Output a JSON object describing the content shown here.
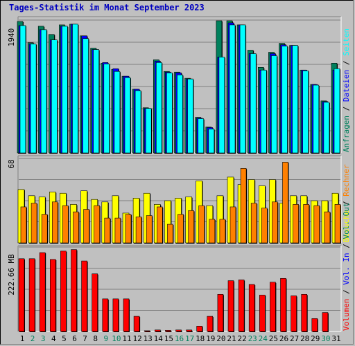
{
  "title": "Tages-Statistik im Monat September 2023",
  "colors": {
    "background": "#c0c0c0",
    "grid": "#808080",
    "hits": "#00805c",
    "files": "#0000ff",
    "pages": "#00ffff",
    "visits": "#ffff00",
    "sites": "#ff8000",
    "volume": "#ff0000",
    "title": "#0000c0",
    "weekend_day": "#00805c",
    "weekday": "#000000"
  },
  "chart_data": [
    {
      "type": "bar",
      "name": "requests-files-pages",
      "scale_label": "1940",
      "legend": [
        {
          "text": "Anfragen",
          "color": "#00805c"
        },
        {
          "text": "Dateien",
          "color": "#0000ff"
        },
        {
          "text": "Seiten",
          "color": "#00ffff"
        }
      ],
      "ylim": [
        0,
        1940
      ],
      "categories": [
        "1",
        "2",
        "3",
        "4",
        "5",
        "6",
        "7",
        "8",
        "9",
        "10",
        "11",
        "12",
        "13",
        "14",
        "15",
        "16",
        "17",
        "18",
        "19",
        "20",
        "21",
        "22",
        "23",
        "24",
        "25",
        "26",
        "27",
        "28",
        "29",
        "30",
        "31"
      ],
      "series": [
        {
          "name": "Anfragen",
          "values": [
            1920,
            1610,
            1850,
            1730,
            1870,
            1880,
            1710,
            1530,
            1310,
            1220,
            1120,
            930,
            660,
            1360,
            1190,
            1180,
            1090,
            520,
            380,
            1930,
            1930,
            1870,
            1500,
            1250,
            1470,
            1600,
            1570,
            1210,
            1000,
            760,
            1310
          ]
        },
        {
          "name": "Dateien",
          "values": [
            1860,
            1590,
            1800,
            1650,
            1850,
            1880,
            1710,
            1510,
            1320,
            1230,
            1120,
            930,
            650,
            1340,
            1180,
            1170,
            1080,
            510,
            370,
            1400,
            1900,
            1870,
            1450,
            1210,
            1450,
            1580,
            1570,
            1210,
            1000,
            750,
            1210
          ]
        },
        {
          "name": "Seiten",
          "values": [
            1860,
            1590,
            1800,
            1650,
            1850,
            1880,
            1670,
            1510,
            1300,
            1190,
            1100,
            910,
            650,
            1320,
            1170,
            1140,
            1080,
            500,
            350,
            1400,
            1870,
            1870,
            1450,
            1210,
            1420,
            1560,
            1570,
            1200,
            990,
            740,
            1230
          ]
        }
      ]
    },
    {
      "type": "bar",
      "name": "visits-sites",
      "scale_label": "68",
      "legend": [
        {
          "text": "Besuche",
          "color": "#ffff00"
        },
        {
          "text": "Rechner",
          "color": "#ff8000"
        }
      ],
      "ylim": [
        0,
        68
      ],
      "categories": [
        "1",
        "2",
        "3",
        "4",
        "5",
        "6",
        "7",
        "8",
        "9",
        "10",
        "11",
        "12",
        "13",
        "14",
        "15",
        "16",
        "17",
        "18",
        "19",
        "20",
        "21",
        "22",
        "23",
        "24",
        "25",
        "26",
        "27",
        "28",
        "29",
        "30",
        "31"
      ],
      "series": [
        {
          "name": "Besuche",
          "values": [
            43,
            38,
            37,
            41,
            40,
            31,
            42,
            35,
            33,
            38,
            24,
            36,
            40,
            31,
            34,
            36,
            37,
            50,
            30,
            38,
            53,
            47,
            51,
            46,
            51,
            32,
            38,
            38,
            34,
            34,
            40
          ]
        },
        {
          "name": "Rechner",
          "values": [
            29,
            32,
            23,
            33,
            30,
            25,
            27,
            30,
            20,
            20,
            23,
            21,
            22,
            29,
            15,
            23,
            26,
            30,
            19,
            19,
            29,
            60,
            32,
            28,
            33,
            65,
            31,
            31,
            30,
            25,
            31
          ]
        }
      ]
    },
    {
      "type": "bar",
      "name": "volume",
      "scale_label": "222.66 MB",
      "legend": [
        {
          "text": "Volumen",
          "color": "#ff0000"
        },
        {
          "text": "Vol. In",
          "color": "#0000ff"
        },
        {
          "text": "Vol. Out",
          "color": "#00805c"
        }
      ],
      "ylim": [
        0,
        222.66
      ],
      "categories": [
        "1",
        "2",
        "3",
        "4",
        "5",
        "6",
        "7",
        "8",
        "9",
        "10",
        "11",
        "12",
        "13",
        "14",
        "15",
        "16",
        "17",
        "18",
        "19",
        "20",
        "21",
        "22",
        "23",
        "24",
        "25",
        "26",
        "27",
        "28",
        "29",
        "30",
        "31"
      ],
      "series": [
        {
          "name": "Volumen",
          "values": [
            192,
            192,
            208,
            190,
            212,
            216,
            186,
            152,
            86,
            86,
            86,
            40,
            2,
            4,
            3,
            4,
            4,
            14,
            40,
            98,
            134,
            136,
            124,
            96,
            130,
            140,
            94,
            98,
            34,
            50,
            0
          ]
        }
      ]
    }
  ],
  "x_axis": {
    "days": [
      "1",
      "2",
      "3",
      "4",
      "5",
      "6",
      "7",
      "8",
      "9",
      "10",
      "11",
      "12",
      "13",
      "14",
      "15",
      "16",
      "17",
      "18",
      "19",
      "20",
      "21",
      "22",
      "23",
      "24",
      "25",
      "26",
      "27",
      "28",
      "29",
      "30",
      "31"
    ],
    "weekend": [
      2,
      3,
      9,
      10,
      16,
      17,
      23,
      24,
      30
    ]
  }
}
